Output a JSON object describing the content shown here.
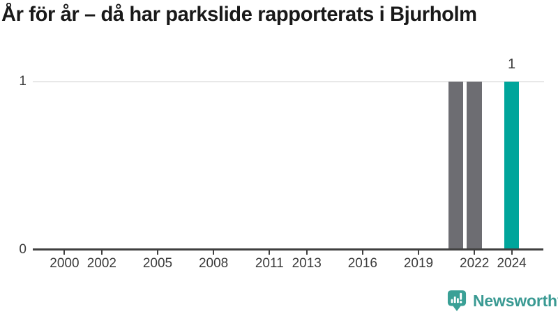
{
  "title": "År för år – då har parkslide rapporterats i Bjurholm",
  "chart_data": {
    "type": "bar",
    "title": "År för år – då har parkslide rapporterats i Bjurholm",
    "xlabel": "",
    "ylabel": "",
    "bars": [
      {
        "year": 2021,
        "value": 1,
        "highlight": false,
        "data_label": ""
      },
      {
        "year": 2022,
        "value": 1,
        "highlight": false,
        "data_label": ""
      },
      {
        "year": 2024,
        "value": 1,
        "highlight": true,
        "data_label": "1"
      }
    ],
    "x_ticks": [
      2000,
      2002,
      2005,
      2008,
      2011,
      2013,
      2016,
      2019,
      2022,
      2024
    ],
    "y_ticks": [
      {
        "value": 0,
        "label": "0"
      },
      {
        "value": 1,
        "label": "1"
      }
    ],
    "xlim": [
      1998.3,
      2025.7
    ],
    "ylim": [
      0,
      1
    ],
    "bar_width_years": 0.8,
    "grid": "horizontal-line-at-max-only",
    "legend": "none"
  },
  "colors": {
    "bar": "#6d6d72",
    "bar_highlight": "#00a59b",
    "axis": "#404040",
    "gridline": "#e8e8e8",
    "tick_text": "#3b3b3b",
    "title_text": "#191919",
    "logo": "#3aa096"
  },
  "branding": {
    "text": "Newsworthy",
    "icon": "newsworthy-chart-bubble-icon"
  }
}
